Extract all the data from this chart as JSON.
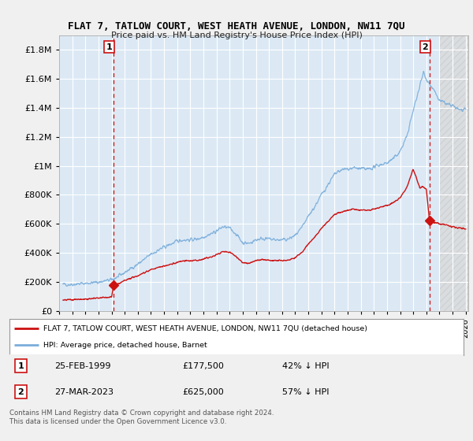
{
  "title": "FLAT 7, TATLOW COURT, WEST HEATH AVENUE, LONDON, NW11 7QU",
  "subtitle": "Price paid vs. HM Land Registry's House Price Index (HPI)",
  "ytick_values": [
    0,
    200000,
    400000,
    600000,
    800000,
    1000000,
    1200000,
    1400000,
    1600000,
    1800000
  ],
  "ylim": [
    0,
    1900000
  ],
  "xlim_start": 1995.3,
  "xlim_end": 2026.2,
  "background_color": "#f0f0f0",
  "plot_background": "#dce9f5",
  "hatch_background": "#e8e8e8",
  "grid_color": "#ffffff",
  "hpi_color": "#7aaddb",
  "price_color": "#cc1111",
  "marker1_date_x": 1999.15,
  "marker1_price_y": 177500,
  "marker2_date_x": 2023.24,
  "marker2_price_y": 625000,
  "hatch_start_x": 2024.0,
  "legend_label_red": "FLAT 7, TATLOW COURT, WEST HEATH AVENUE, LONDON, NW11 7QU (detached house)",
  "legend_label_blue": "HPI: Average price, detached house, Barnet",
  "note1_date": "25-FEB-1999",
  "note1_price": "£177,500",
  "note1_hpi": "42% ↓ HPI",
  "note2_date": "27-MAR-2023",
  "note2_price": "£625,000",
  "note2_hpi": "57% ↓ HPI",
  "footer": "Contains HM Land Registry data © Crown copyright and database right 2024.\nThis data is licensed under the Open Government Licence v3.0."
}
